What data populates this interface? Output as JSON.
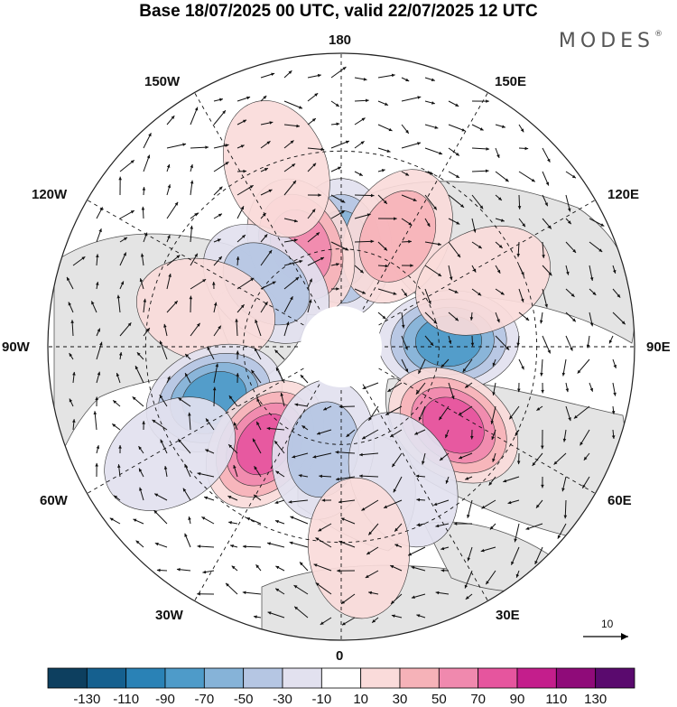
{
  "title": "Base 18/07/2025 00 UTC, valid 22/07/2025 12 UTC",
  "brand": {
    "name": "MODES",
    "mark": "®"
  },
  "longitude_labels": {
    "n180": "180",
    "w150": "150W",
    "e150": "150E",
    "w120": "120W",
    "e120": "120E",
    "w90": "90W",
    "e90": "90E",
    "w60": "60W",
    "e60": "60E",
    "w30": "30W",
    "e30": "30E",
    "z0": "0"
  },
  "reference_vector": {
    "label": "10"
  },
  "colorbar": {
    "colors": [
      "#0d3f5f",
      "#15608f",
      "#2a82b6",
      "#4e9bc9",
      "#86b3d8",
      "#b5c6e3",
      "#e2e1ef",
      "#ffffff",
      "#fadbda",
      "#f6b2b8",
      "#f089ae",
      "#e6559e",
      "#c41e8c",
      "#8f0b79",
      "#5a0a6e"
    ],
    "ticks": [
      "-130",
      "-110",
      "-90",
      "-70",
      "-50",
      "-30",
      "-10",
      "10",
      "30",
      "50",
      "70",
      "90",
      "110",
      "130"
    ]
  },
  "anomaly_centers": [
    {
      "lon_deg": 180,
      "lat_deg": 60,
      "value": -70
    },
    {
      "lon_deg": 153,
      "lat_deg": 52,
      "value": 40
    },
    {
      "lon_deg": -158,
      "lat_deg": 57,
      "value": 70
    },
    {
      "lon_deg": -130,
      "lat_deg": 60,
      "value": -40
    },
    {
      "lon_deg": -105,
      "lat_deg": 47,
      "value": 30
    },
    {
      "lon_deg": 93,
      "lat_deg": 57,
      "value": -80
    },
    {
      "lon_deg": 55,
      "lat_deg": 48,
      "value": 80
    },
    {
      "lon_deg": -68,
      "lat_deg": 48,
      "value": -80
    },
    {
      "lon_deg": -38,
      "lat_deg": 52,
      "value": 90
    },
    {
      "lon_deg": -10,
      "lat_deg": 58,
      "value": -40
    },
    {
      "lon_deg": 25,
      "lat_deg": 45,
      "value": -35
    },
    {
      "lon_deg": -58,
      "lat_deg": 28,
      "value": -25
    },
    {
      "lon_deg": 5,
      "lat_deg": 28,
      "value": 25
    },
    {
      "lon_deg": -160,
      "lat_deg": 32,
      "value": 20
    },
    {
      "lon_deg": 115,
      "lat_deg": 42,
      "value": 30
    }
  ]
}
